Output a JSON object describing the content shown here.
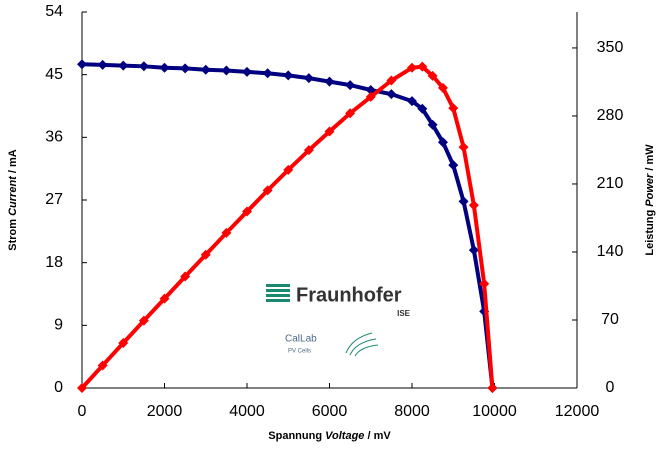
{
  "chart_data": {
    "type": "line",
    "x_label": [
      "Spannung",
      "Voltage",
      "/ mV"
    ],
    "y_label": [
      "Strom",
      "Current",
      "/ mA"
    ],
    "y2_label": [
      "Leistung",
      "Power",
      "/ mW"
    ],
    "logo": {
      "name": "Fraunhofer",
      "unit": "ISE",
      "lab": "CalLab",
      "lab_sub": "PV Cells"
    },
    "x": [
      0,
      500,
      1000,
      1500,
      2000,
      2500,
      3000,
      3500,
      4000,
      4500,
      5000,
      5500,
      6000,
      6500,
      7000,
      7500,
      8000,
      8250,
      8500,
      8750,
      9000,
      9250,
      9500,
      9750,
      9950
    ],
    "series": [
      {
        "name": "Current",
        "color": "#000080",
        "axis": "y",
        "values": [
          46.5,
          46.4,
          46.3,
          46.2,
          46.0,
          45.9,
          45.7,
          45.6,
          45.4,
          45.2,
          44.9,
          44.5,
          44.0,
          43.5,
          42.8,
          42.2,
          41.2,
          40.1,
          37.8,
          35.3,
          32.0,
          26.8,
          19.8,
          11.0,
          0
        ]
      },
      {
        "name": "Power",
        "color": "#ff0000",
        "axis": "y2",
        "values": [
          0,
          23.2,
          46.3,
          69.3,
          92.0,
          114.8,
          137.1,
          159.6,
          181.6,
          203.4,
          224.5,
          244.8,
          264.0,
          282.8,
          299.6,
          316.5,
          329.6,
          330.8,
          321.3,
          308.9,
          288.0,
          247.9,
          188.1,
          107.3,
          0
        ]
      }
    ],
    "xlim": [
      0,
      12000
    ],
    "xticks": [
      0,
      2000,
      4000,
      6000,
      8000,
      10000,
      12000
    ],
    "ylim": [
      0,
      54
    ],
    "yticks": [
      0,
      9,
      18,
      27,
      36,
      45,
      54
    ],
    "y2lim": [
      0,
      387
    ],
    "y2ticks": [
      0,
      70,
      140,
      210,
      280,
      350
    ]
  }
}
